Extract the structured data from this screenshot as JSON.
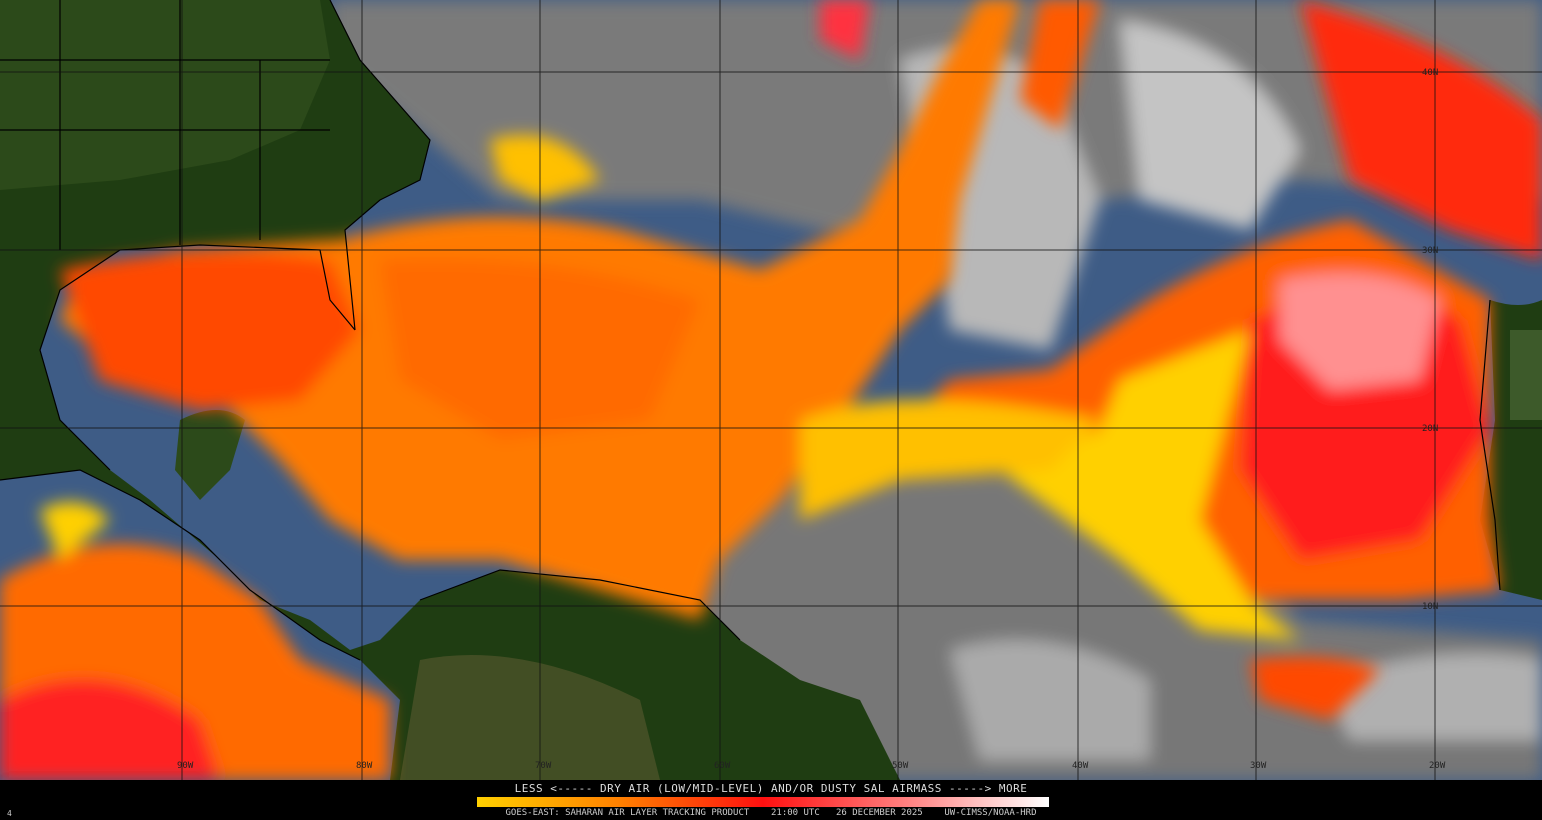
{
  "legend": {
    "title": "LESS <----- DRY AIR (LOW/MID-LEVEL) AND/OR DUSTY SAL AIRMASS -----> MORE",
    "colors": [
      "#ffd000",
      "#ff8000",
      "#ff1010",
      "#ff8080",
      "#ffffff"
    ]
  },
  "footer": {
    "text": "GOES-EAST: SAHARAN AIR LAYER TRACKING PRODUCT    21:00 UTC   26 DECEMBER 2025    UW-CIMSS/NOAA-HRD",
    "corner_mark": "4"
  },
  "grid": {
    "longitudes": [
      "90W",
      "80W",
      "70W",
      "60W",
      "50W",
      "40W",
      "30W",
      "20W"
    ],
    "latitudes": [
      "40N",
      "30N",
      "20N",
      "10N"
    ]
  },
  "colors": {
    "land": "#1f3d12",
    "ocean": "#3d5f8f",
    "cloud": "#9a9a9a",
    "dry_air": "#ff8c00"
  }
}
